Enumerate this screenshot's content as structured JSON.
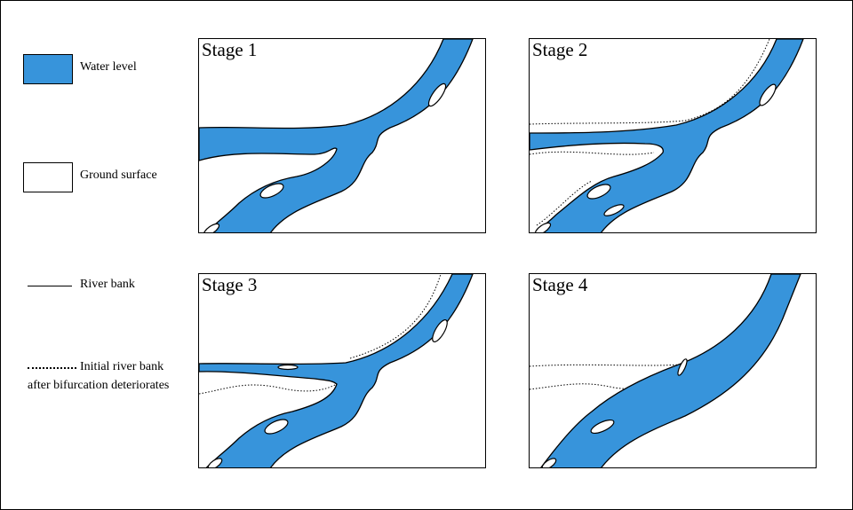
{
  "legend": {
    "water": {
      "label": "Water level",
      "color": "#3794db"
    },
    "ground": {
      "label": "Ground surface",
      "color": "#ffffff"
    },
    "bank": {
      "label": "River bank"
    },
    "initial_bank": {
      "label_line1": "Initial river bank",
      "label_line2": "after bifurcation deteriorates"
    }
  },
  "panels": [
    {
      "title": "Stage 1"
    },
    {
      "title": "Stage 2"
    },
    {
      "title": "Stage 3"
    },
    {
      "title": "Stage 4"
    }
  ]
}
